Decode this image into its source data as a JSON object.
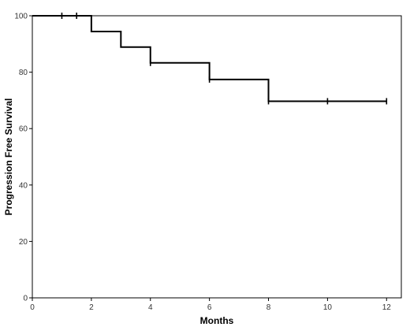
{
  "chart_data": {
    "type": "line",
    "subtype": "kaplan-meier-step",
    "title": "",
    "xlabel": "Months",
    "ylabel": "Progression Free Survival",
    "xlim": [
      0,
      12.5
    ],
    "ylim": [
      0,
      100
    ],
    "x_ticks": [
      "0",
      "2",
      "4",
      "6",
      "8",
      "10",
      "12"
    ],
    "y_ticks": [
      "0",
      "20",
      "40",
      "60",
      "80",
      "100"
    ],
    "grid": false,
    "legend": "none",
    "line_color": "#000000",
    "series": [
      {
        "steps": [
          {
            "x": 0,
            "y": 100
          },
          {
            "x": 2,
            "y": 94.4
          },
          {
            "x": 3,
            "y": 88.9
          },
          {
            "x": 4,
            "y": 83.3
          },
          {
            "x": 6,
            "y": 77.4
          },
          {
            "x": 8,
            "y": 69.7
          },
          {
            "x": 12,
            "y": 69.7
          }
        ],
        "censored": [
          {
            "x": 1,
            "y": 100
          },
          {
            "x": 1.5,
            "y": 100
          },
          {
            "x": 4,
            "y": 83.3
          },
          {
            "x": 6,
            "y": 77.4
          },
          {
            "x": 8,
            "y": 69.7
          },
          {
            "x": 10,
            "y": 69.7
          },
          {
            "x": 12,
            "y": 69.7
          }
        ]
      }
    ]
  }
}
